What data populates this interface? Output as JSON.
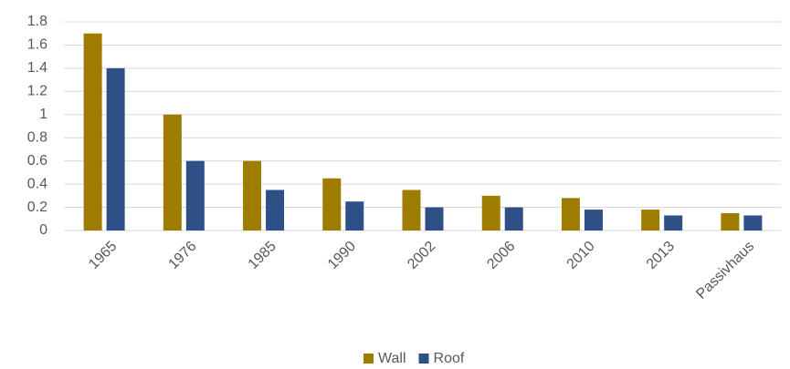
{
  "chart_data": {
    "type": "bar",
    "categories": [
      "1965",
      "1976",
      "1985",
      "1990",
      "2002",
      "2006",
      "2010",
      "2013",
      "Passivhaus"
    ],
    "series": [
      {
        "name": "Wall",
        "color": "#9e7c00",
        "values": [
          1.7,
          1.0,
          0.6,
          0.45,
          0.35,
          0.3,
          0.28,
          0.18,
          0.15
        ]
      },
      {
        "name": "Roof",
        "color": "#2f5086",
        "values": [
          1.4,
          0.6,
          0.35,
          0.25,
          0.2,
          0.2,
          0.18,
          0.13,
          0.13
        ]
      }
    ],
    "ylim": [
      0,
      1.8
    ],
    "yticks": [
      0,
      0.2,
      0.4,
      0.6,
      0.8,
      1,
      1.2,
      1.4,
      1.6,
      1.8
    ],
    "grid": true,
    "legend": "bottom"
  }
}
